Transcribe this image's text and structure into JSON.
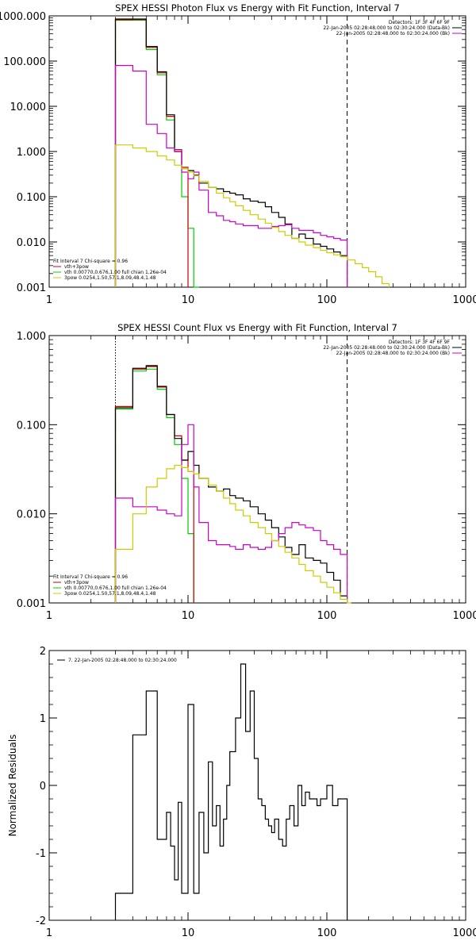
{
  "chart_data": [
    {
      "type": "line",
      "title": "SPEX HESSI Photon Flux vs Energy with Fit Function, Interval 7",
      "xlabel": "",
      "ylabel": "",
      "x_scale": "log",
      "y_scale": "log",
      "xlim": [
        1,
        1000
      ],
      "ylim": [
        0.001,
        1000
      ],
      "x_ticks": [
        "1",
        "10",
        "100",
        "1000"
      ],
      "y_ticks": [
        "0.001",
        "0.010",
        "0.100",
        "1.000",
        "10.000",
        "100.000",
        "1000.000"
      ],
      "x_tick_values": [
        1,
        10,
        100,
        1000
      ],
      "y_tick_values": [
        0.001,
        0.01,
        0.1,
        1,
        10,
        100,
        1000
      ],
      "grid": false,
      "info_lines": [
        {
          "text": "Detectors: 1F 3F 4F 6F 9F",
          "color": ""
        },
        {
          "text": "22-Jan-2005 02:28:48.000 to 02:30:24.000 (Data-Bk)",
          "color": "#000000"
        },
        {
          "text": "22-Jan-2005 02:28:48.000 to 02:30:24.000 (Bk)",
          "color": "#cc00cc"
        }
      ],
      "legend": [
        {
          "text": "Fit Interval 7   Chi-square = 0.96",
          "color": ""
        },
        {
          "text": "vth+3pow",
          "color": "#cc0000"
        },
        {
          "text": "vth 0.00770,0.676,1.00  full chian 1.26e-04",
          "color": "#00cc00"
        },
        {
          "text": "3pow 0.0254,1.50,57.1,8.09,48.4,1.48",
          "color": "#cccc00"
        }
      ],
      "vlines": [
        {
          "x": 3.0,
          "style": "dotted",
          "color": "#cc8800"
        },
        {
          "x": 140,
          "style": "dashed",
          "color": "#000000"
        }
      ],
      "series": [
        {
          "color": "#00cc00",
          "edges": [
            3.0,
            4.0,
            5.0,
            6.0,
            7.0,
            8.0,
            9.0,
            10.0,
            11.0,
            12.0
          ],
          "values": [
            800,
            800,
            180,
            50,
            5,
            1,
            0.1,
            0.02,
            0.001
          ]
        },
        {
          "color": "#cc0000",
          "edges": [
            3.0,
            4.0,
            5.0,
            6.0,
            7.0,
            8.0,
            9.0,
            10.0
          ],
          "values": [
            820,
            830,
            200,
            55,
            6,
            1.1,
            0.45
          ]
        },
        {
          "color": "#000000",
          "edges": [
            3.0,
            4.0,
            5.0,
            6.0,
            7.0,
            8.0,
            9.0,
            10.0,
            11.0,
            12.0,
            14.0,
            16.0,
            18.0,
            20.0,
            22.0,
            25.0,
            28.0,
            32.0,
            36.0,
            40.0,
            45.0,
            50.0,
            56.0,
            63.0,
            70.0,
            80.0,
            90.0,
            100.0,
            112.0,
            125.0,
            140.0
          ],
          "values": [
            850,
            850,
            210,
            58,
            6.5,
            1.0,
            0.42,
            0.38,
            0.3,
            0.2,
            0.16,
            0.15,
            0.13,
            0.12,
            0.11,
            0.09,
            0.08,
            0.075,
            0.06,
            0.045,
            0.035,
            0.025,
            0.012,
            0.015,
            0.012,
            0.009,
            0.008,
            0.007,
            0.006,
            0.005
          ]
        },
        {
          "color": "#cc00cc",
          "edges": [
            3.0,
            4.0,
            5.0,
            6.0,
            7.0,
            8.0,
            9.0,
            10.0,
            11.0,
            12.0,
            14.0,
            16.0,
            18.0,
            20.0,
            22.0,
            25.0,
            28.0,
            32.0,
            36.0,
            40.0,
            45.0,
            50.0,
            56.0,
            63.0,
            70.0,
            80.0,
            90.0,
            100.0,
            112.0,
            125.0,
            140.0
          ],
          "values": [
            80,
            60,
            4,
            2.5,
            1.2,
            1.0,
            0.35,
            0.25,
            0.35,
            0.14,
            0.045,
            0.038,
            0.03,
            0.028,
            0.025,
            0.023,
            0.023,
            0.02,
            0.02,
            0.022,
            0.023,
            0.024,
            0.02,
            0.018,
            0.018,
            0.016,
            0.014,
            0.013,
            0.012,
            0.011
          ]
        },
        {
          "color": "#cccc00",
          "edges": [
            3.0,
            4.0,
            5.0,
            6.0,
            7.0,
            8.0,
            9.0,
            10.0,
            11.0,
            12.0,
            14.0,
            16.0,
            18.0,
            20.0,
            22.0,
            25.0,
            28.0,
            32.0,
            36.0,
            40.0,
            45.0,
            50.0,
            56.0,
            63.0,
            70.0,
            80.0,
            90.0,
            100.0,
            112.0,
            125.0,
            140.0,
            160.0,
            180.0,
            200.0,
            225.0,
            250.0,
            280.0
          ],
          "values": [
            1.4,
            1.2,
            1.0,
            0.8,
            0.65,
            0.5,
            0.42,
            0.35,
            0.29,
            0.22,
            0.16,
            0.12,
            0.095,
            0.078,
            0.063,
            0.05,
            0.04,
            0.032,
            0.026,
            0.021,
            0.017,
            0.014,
            0.012,
            0.01,
            0.0085,
            0.0075,
            0.0065,
            0.0058,
            0.0052,
            0.0047,
            0.004,
            0.0033,
            0.0027,
            0.0022,
            0.0017,
            0.0012
          ]
        }
      ]
    },
    {
      "type": "line",
      "title": "SPEX HESSI Count Flux vs Energy with Fit Function, Interval 7",
      "xlabel": "",
      "ylabel": "",
      "x_scale": "log",
      "y_scale": "log",
      "xlim": [
        1,
        1000
      ],
      "ylim": [
        0.001,
        1
      ],
      "x_ticks": [
        "1",
        "10",
        "100",
        "1000"
      ],
      "y_ticks": [
        "0.001",
        "0.010",
        "0.100",
        "1.000"
      ],
      "x_tick_values": [
        1,
        10,
        100,
        1000
      ],
      "y_tick_values": [
        0.001,
        0.01,
        0.1,
        1
      ],
      "grid": false,
      "info_lines": [
        {
          "text": "Detectors: 1F 3F 4F 6F 9F",
          "color": ""
        },
        {
          "text": "22-Jan-2005 02:28:48.000 to 02:30:24.000 (Data-Bk)",
          "color": "#000000"
        },
        {
          "text": "22-Jan-2005 02:28:48.000 to 02:30:24.000 (Bk)",
          "color": "#cc00cc"
        }
      ],
      "legend": [
        {
          "text": "Fit Interval 7   Chi-square = 0.96",
          "color": ""
        },
        {
          "text": "vth+3pow",
          "color": "#cc0000"
        },
        {
          "text": "vth 0.00770,0.676,1.00  full chian 1.26e-04",
          "color": "#00cc00"
        },
        {
          "text": "3pow 0.0254,1.50,57.1,8.09,48.4,1.48",
          "color": "#cccc00"
        }
      ],
      "vlines": [
        {
          "x": 3.0,
          "style": "dotted",
          "color": "#000000"
        },
        {
          "x": 140,
          "style": "dashed",
          "color": "#000000"
        }
      ],
      "series": [
        {
          "color": "#00cc00",
          "edges": [
            3.0,
            4.0,
            5.0,
            6.0,
            7.0,
            8.0,
            9.0,
            10.0,
            11.0
          ],
          "values": [
            0.15,
            0.4,
            0.42,
            0.25,
            0.12,
            0.06,
            0.025,
            0.006
          ]
        },
        {
          "color": "#cc0000",
          "edges": [
            3.0,
            4.0,
            5.0,
            6.0,
            7.0,
            8.0,
            9.0,
            10.0,
            11.0
          ],
          "values": [
            0.16,
            0.42,
            0.45,
            0.27,
            0.13,
            0.075,
            0.04,
            0.03
          ]
        },
        {
          "color": "#000000",
          "edges": [
            3.0,
            4.0,
            5.0,
            6.0,
            7.0,
            8.0,
            9.0,
            10.0,
            11.0,
            12.0,
            14.0,
            16.0,
            18.0,
            20.0,
            22.0,
            25.0,
            28.0,
            32.0,
            36.0,
            40.0,
            45.0,
            50.0,
            56.0,
            63.0,
            70.0,
            80.0,
            90.0,
            100.0,
            112.0,
            125.0,
            140.0
          ],
          "values": [
            0.155,
            0.43,
            0.46,
            0.265,
            0.13,
            0.07,
            0.04,
            0.05,
            0.035,
            0.025,
            0.02,
            0.018,
            0.019,
            0.016,
            0.015,
            0.014,
            0.012,
            0.01,
            0.0085,
            0.007,
            0.0055,
            0.0042,
            0.0035,
            0.0045,
            0.0032,
            0.003,
            0.0028,
            0.0022,
            0.0018,
            0.0012
          ]
        },
        {
          "color": "#cc00cc",
          "edges": [
            3.0,
            4.0,
            5.0,
            6.0,
            7.0,
            8.0,
            9.0,
            10.0,
            11.0,
            12.0,
            14.0,
            16.0,
            18.0,
            20.0,
            22.0,
            25.0,
            28.0,
            32.0,
            36.0,
            40.0,
            45.0,
            50.0,
            56.0,
            63.0,
            70.0,
            80.0,
            90.0,
            100.0,
            112.0,
            125.0,
            140.0
          ],
          "values": [
            0.015,
            0.012,
            0.012,
            0.011,
            0.01,
            0.0095,
            0.06,
            0.1,
            0.02,
            0.008,
            0.005,
            0.0045,
            0.0045,
            0.0043,
            0.004,
            0.0045,
            0.0042,
            0.004,
            0.0042,
            0.005,
            0.006,
            0.007,
            0.008,
            0.0075,
            0.007,
            0.0065,
            0.005,
            0.0045,
            0.004,
            0.0035
          ]
        },
        {
          "color": "#cccc00",
          "edges": [
            3.0,
            4.0,
            5.0,
            6.0,
            7.0,
            8.0,
            9.0,
            10.0,
            11.0,
            12.0,
            14.0,
            16.0,
            18.0,
            20.0,
            22.0,
            25.0,
            28.0,
            32.0,
            36.0,
            40.0,
            45.0,
            50.0,
            56.0,
            63.0,
            70.0,
            80.0,
            90.0,
            100.0,
            112.0,
            125.0,
            140.0,
            150.0
          ],
          "values": [
            0.004,
            0.01,
            0.02,
            0.025,
            0.032,
            0.035,
            0.033,
            0.03,
            0.028,
            0.025,
            0.021,
            0.018,
            0.015,
            0.013,
            0.011,
            0.0095,
            0.008,
            0.007,
            0.006,
            0.005,
            0.0043,
            0.0037,
            0.0032,
            0.0027,
            0.0023,
            0.002,
            0.0017,
            0.0015,
            0.0013,
            0.0011,
            0.001
          ]
        }
      ]
    },
    {
      "type": "line",
      "title": "",
      "xlabel": "",
      "ylabel": "Normalized Residuals",
      "x_scale": "log",
      "y_scale": "linear",
      "xlim": [
        1,
        1000
      ],
      "ylim": [
        -2,
        2
      ],
      "x_ticks": [
        "1",
        "10",
        "100",
        "1000"
      ],
      "y_ticks": [
        "-2",
        "-1",
        "0",
        "1",
        "2"
      ],
      "x_tick_values": [
        1,
        10,
        100,
        1000
      ],
      "y_tick_values": [
        -2,
        -1,
        0,
        1,
        2
      ],
      "grid": false,
      "info_lines": [],
      "legend": [
        {
          "text": "7. 22-Jan-2005 02:28:48.000 to 02:30:24.000",
          "color": "#000000"
        }
      ],
      "vlines": [],
      "series": [
        {
          "color": "#000000",
          "edges": [
            3.0,
            4.0,
            5.0,
            6.0,
            7.0,
            7.5,
            8.0,
            8.5,
            9.0,
            10.0,
            11.0,
            12.0,
            13.0,
            14.0,
            15.0,
            16.0,
            17.0,
            18.0,
            19.0,
            20.0,
            22.0,
            24.0,
            26.0,
            28.0,
            30.0,
            32.0,
            34.0,
            36.0,
            38.0,
            40.0,
            42.0,
            45.0,
            48.0,
            51.0,
            54.0,
            58.0,
            62.0,
            66.0,
            70.0,
            75.0,
            80.0,
            85.0,
            90.0,
            100.0,
            110.0,
            120.0,
            130.0,
            140.0
          ],
          "values": [
            -1.6,
            0.75,
            1.4,
            -0.8,
            -0.4,
            -0.9,
            -1.4,
            -0.25,
            -1.6,
            1.2,
            -1.6,
            -0.4,
            -1.0,
            0.35,
            -0.6,
            -0.3,
            -0.9,
            -0.5,
            0.0,
            0.5,
            1.0,
            1.8,
            0.8,
            1.4,
            0.4,
            -0.2,
            -0.3,
            -0.5,
            -0.6,
            -0.7,
            -0.5,
            -0.8,
            -0.9,
            -0.5,
            -0.3,
            -0.6,
            0.0,
            -0.3,
            -0.1,
            -0.2,
            -0.2,
            -0.3,
            -0.2,
            0.0,
            -0.3,
            -0.2,
            -0.2
          ]
        }
      ]
    }
  ]
}
